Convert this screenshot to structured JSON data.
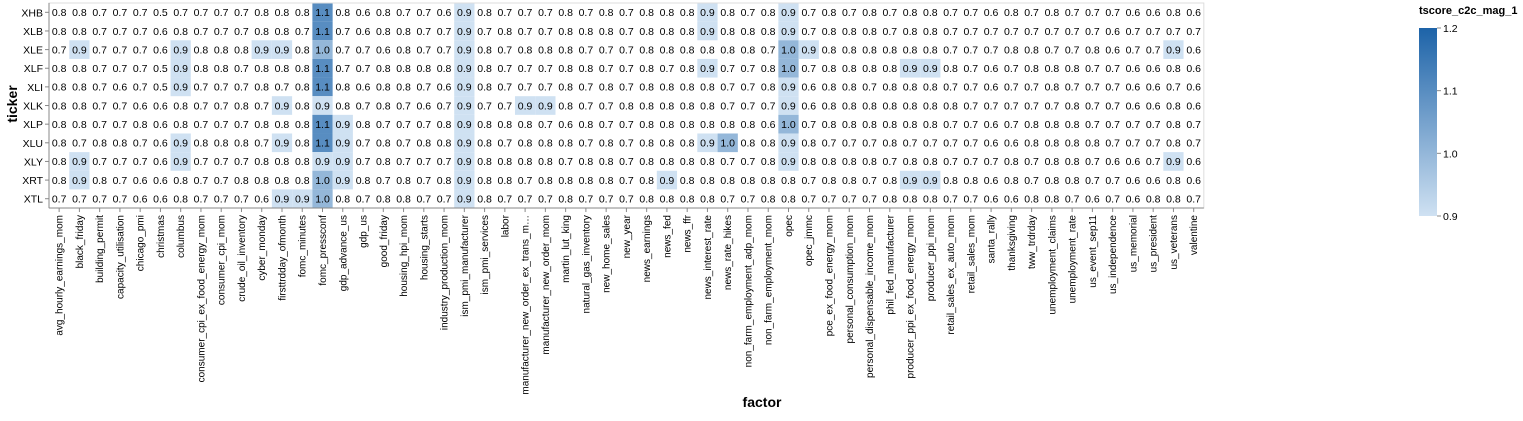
{
  "chart_data": {
    "type": "heatmap",
    "title": "",
    "xlabel": "factor",
    "ylabel": "ticker",
    "legend": {
      "title": "tscore_c2c_mag_1",
      "placement": "right",
      "ticks": [
        "1.2",
        "1.1",
        "1.0",
        "0.9"
      ],
      "color_low": "#cfe1f2",
      "color_high": "#1d63a8"
    },
    "value_range": [
      0.9,
      1.2
    ],
    "highlight_threshold": 0.9,
    "x": [
      "avg_hourly_earnings_mom",
      "black_friday",
      "building_permit",
      "capacity_utilisation",
      "chicago_pmi",
      "christmas",
      "columbus",
      "consumer_cpi_ex_food_energy_mom",
      "consumer_cpi_mom",
      "crude_oil_inventory",
      "cyber_monday",
      "firsttrdday_ofmonth",
      "fomc_minutes",
      "fomc_pressconf",
      "gdp_advance_us",
      "gdp_us",
      "good_friday",
      "housing_hpi_mom",
      "housing_starts",
      "industry_production_mom",
      "ism_pmi_manufacturer",
      "ism_pmi_services",
      "labor",
      "manufacturer_new_order_ex_trans_m…",
      "manufacturer_new_order_mom",
      "martin_lut_king",
      "natural_gas_inventory",
      "new_home_sales",
      "new_year",
      "news_earnings",
      "news_fed",
      "news_ffr",
      "news_interest_rate",
      "news_rate_hikes",
      "non_farm_employment_adp_mom",
      "non_farm_employment_mom",
      "opec",
      "opec_jmmc",
      "pce_ex_food_energy_mom",
      "personal_consumption_mom",
      "personal_dispensable_income_mom",
      "phil_fed_manufacturer",
      "producer_ppi_ex_food_energy_mom",
      "producer_ppi_mom",
      "retail_sales_ex_auto_mom",
      "retail_sales_mom",
      "santa_rally",
      "thanksgiving",
      "tww_trdrday",
      "unemployment_claims",
      "unemployment_rate",
      "us_event_sep11",
      "us_independence",
      "us_memorial",
      "us_president",
      "us_veterans",
      "valentine"
    ],
    "y": [
      "XHB",
      "XLB",
      "XLE",
      "XLF",
      "XLI",
      "XLK",
      "XLP",
      "XLU",
      "XLY",
      "XRT",
      "XTL"
    ],
    "values": [
      [
        0.8,
        0.8,
        0.7,
        0.7,
        0.7,
        0.5,
        0.7,
        0.7,
        0.7,
        0.7,
        0.8,
        0.8,
        0.8,
        1.1,
        0.8,
        0.6,
        0.8,
        0.7,
        0.7,
        0.6,
        0.9,
        0.8,
        0.7,
        0.7,
        0.7,
        0.8,
        0.7,
        0.8,
        0.7,
        0.8,
        0.8,
        0.8,
        0.9,
        0.8,
        0.7,
        0.8,
        0.9,
        0.7,
        0.8,
        0.7,
        0.8,
        0.7,
        0.8,
        0.8,
        0.7,
        0.7,
        0.6,
        0.8,
        0.7,
        0.8,
        0.7,
        0.7,
        0.7,
        0.6,
        0.6,
        0.8,
        0.6
      ],
      [
        0.8,
        0.8,
        0.7,
        0.7,
        0.7,
        0.6,
        0.8,
        0.7,
        0.7,
        0.7,
        0.8,
        0.8,
        0.7,
        1.1,
        0.7,
        0.6,
        0.8,
        0.8,
        0.7,
        0.7,
        0.9,
        0.7,
        0.8,
        0.7,
        0.7,
        0.8,
        0.8,
        0.8,
        0.7,
        0.8,
        0.8,
        0.8,
        0.9,
        0.8,
        0.8,
        0.8,
        0.9,
        0.7,
        0.8,
        0.8,
        0.8,
        0.7,
        0.8,
        0.8,
        0.7,
        0.7,
        0.7,
        0.7,
        0.7,
        0.7,
        0.7,
        0.7,
        0.6,
        0.7,
        0.7,
        0.7,
        0.7
      ],
      [
        0.7,
        0.9,
        0.7,
        0.7,
        0.7,
        0.6,
        0.9,
        0.8,
        0.8,
        0.8,
        0.9,
        0.9,
        0.8,
        1.0,
        0.7,
        0.7,
        0.6,
        0.8,
        0.7,
        0.7,
        0.9,
        0.8,
        0.7,
        0.8,
        0.8,
        0.8,
        0.7,
        0.7,
        0.7,
        0.8,
        0.8,
        0.8,
        0.8,
        0.8,
        0.8,
        0.7,
        1.0,
        0.9,
        0.8,
        0.8,
        0.8,
        0.8,
        0.8,
        0.8,
        0.7,
        0.7,
        0.7,
        0.8,
        0.8,
        0.7,
        0.7,
        0.8,
        0.6,
        0.7,
        0.7,
        0.9,
        0.6
      ],
      [
        0.8,
        0.8,
        0.7,
        0.7,
        0.7,
        0.5,
        0.9,
        0.8,
        0.8,
        0.7,
        0.8,
        0.8,
        0.8,
        1.1,
        0.7,
        0.7,
        0.8,
        0.8,
        0.8,
        0.8,
        0.9,
        0.8,
        0.7,
        0.7,
        0.7,
        0.8,
        0.8,
        0.7,
        0.7,
        0.8,
        0.7,
        0.8,
        0.9,
        0.7,
        0.7,
        0.8,
        1.0,
        0.7,
        0.8,
        0.8,
        0.8,
        0.8,
        0.9,
        0.9,
        0.8,
        0.7,
        0.6,
        0.7,
        0.8,
        0.8,
        0.8,
        0.7,
        0.7,
        0.6,
        0.6,
        0.8,
        0.6
      ],
      [
        0.8,
        0.8,
        0.7,
        0.6,
        0.7,
        0.5,
        0.9,
        0.7,
        0.7,
        0.7,
        0.8,
        0.7,
        0.8,
        1.1,
        0.8,
        0.6,
        0.8,
        0.8,
        0.7,
        0.6,
        0.9,
        0.8,
        0.7,
        0.7,
        0.7,
        0.8,
        0.7,
        0.8,
        0.7,
        0.8,
        0.8,
        0.8,
        0.8,
        0.7,
        0.7,
        0.8,
        0.9,
        0.6,
        0.8,
        0.8,
        0.7,
        0.8,
        0.8,
        0.8,
        0.7,
        0.7,
        0.6,
        0.7,
        0.7,
        0.8,
        0.7,
        0.7,
        0.7,
        0.6,
        0.6,
        0.7,
        0.6
      ],
      [
        0.8,
        0.8,
        0.7,
        0.7,
        0.6,
        0.6,
        0.8,
        0.7,
        0.7,
        0.8,
        0.7,
        0.9,
        0.8,
        0.9,
        0.8,
        0.7,
        0.8,
        0.7,
        0.6,
        0.7,
        0.9,
        0.7,
        0.7,
        0.9,
        0.9,
        0.8,
        0.7,
        0.7,
        0.8,
        0.8,
        0.8,
        0.8,
        0.8,
        0.7,
        0.7,
        0.7,
        0.9,
        0.6,
        0.8,
        0.8,
        0.8,
        0.8,
        0.8,
        0.8,
        0.8,
        0.7,
        0.7,
        0.7,
        0.7,
        0.7,
        0.8,
        0.7,
        0.7,
        0.6,
        0.6,
        0.8,
        0.6
      ],
      [
        0.8,
        0.8,
        0.7,
        0.7,
        0.8,
        0.6,
        0.8,
        0.7,
        0.7,
        0.7,
        0.8,
        0.8,
        0.8,
        1.1,
        0.9,
        0.8,
        0.7,
        0.7,
        0.7,
        0.8,
        0.9,
        0.8,
        0.8,
        0.8,
        0.7,
        0.6,
        0.8,
        0.7,
        0.7,
        0.8,
        0.8,
        0.8,
        0.8,
        0.8,
        0.8,
        0.6,
        1.0,
        0.7,
        0.8,
        0.8,
        0.8,
        0.8,
        0.8,
        0.8,
        0.7,
        0.7,
        0.6,
        0.7,
        0.8,
        0.8,
        0.8,
        0.7,
        0.7,
        0.7,
        0.7,
        0.8,
        0.7
      ],
      [
        0.8,
        0.7,
        0.8,
        0.8,
        0.7,
        0.6,
        0.9,
        0.8,
        0.8,
        0.8,
        0.7,
        0.9,
        0.8,
        1.1,
        0.9,
        0.7,
        0.8,
        0.7,
        0.8,
        0.8,
        0.9,
        0.8,
        0.7,
        0.8,
        0.8,
        0.8,
        0.7,
        0.8,
        0.7,
        0.8,
        0.8,
        0.8,
        0.9,
        1.0,
        0.8,
        0.8,
        0.9,
        0.8,
        0.7,
        0.7,
        0.7,
        0.8,
        0.7,
        0.7,
        0.7,
        0.7,
        0.6,
        0.6,
        0.8,
        0.8,
        0.8,
        0.8,
        0.7,
        0.7,
        0.7,
        0.8,
        0.7
      ],
      [
        0.8,
        0.9,
        0.7,
        0.7,
        0.7,
        0.6,
        0.9,
        0.7,
        0.7,
        0.7,
        0.8,
        0.8,
        0.8,
        0.9,
        0.9,
        0.7,
        0.8,
        0.7,
        0.7,
        0.7,
        0.9,
        0.8,
        0.8,
        0.8,
        0.8,
        0.7,
        0.8,
        0.8,
        0.7,
        0.8,
        0.8,
        0.8,
        0.8,
        0.7,
        0.7,
        0.8,
        0.9,
        0.8,
        0.8,
        0.8,
        0.8,
        0.7,
        0.8,
        0.8,
        0.7,
        0.7,
        0.7,
        0.8,
        0.7,
        0.8,
        0.8,
        0.7,
        0.6,
        0.6,
        0.7,
        0.9,
        0.6
      ],
      [
        0.8,
        0.9,
        0.8,
        0.7,
        0.6,
        0.6,
        0.8,
        0.7,
        0.7,
        0.8,
        0.8,
        0.8,
        0.8,
        1.0,
        0.9,
        0.8,
        0.7,
        0.8,
        0.7,
        0.8,
        0.9,
        0.8,
        0.8,
        0.7,
        0.8,
        0.8,
        0.8,
        0.8,
        0.7,
        0.8,
        0.9,
        0.8,
        0.8,
        0.8,
        0.8,
        0.8,
        0.8,
        0.7,
        0.8,
        0.8,
        0.7,
        0.8,
        0.9,
        0.9,
        0.8,
        0.8,
        0.6,
        0.8,
        0.7,
        0.8,
        0.8,
        0.7,
        0.7,
        0.6,
        0.6,
        0.8,
        0.6
      ],
      [
        0.7,
        0.7,
        0.7,
        0.7,
        0.6,
        0.6,
        0.8,
        0.7,
        0.7,
        0.7,
        0.6,
        0.9,
        0.9,
        1.0,
        0.8,
        0.7,
        0.8,
        0.8,
        0.7,
        0.7,
        0.9,
        0.8,
        0.7,
        0.7,
        0.7,
        0.8,
        0.7,
        0.7,
        0.7,
        0.8,
        0.8,
        0.8,
        0.8,
        0.7,
        0.7,
        0.8,
        0.8,
        0.7,
        0.7,
        0.7,
        0.7,
        0.8,
        0.8,
        0.8,
        0.7,
        0.7,
        0.6,
        0.6,
        0.8,
        0.8,
        0.7,
        0.6,
        0.7,
        0.6,
        0.8,
        0.8,
        0.7
      ]
    ]
  }
}
